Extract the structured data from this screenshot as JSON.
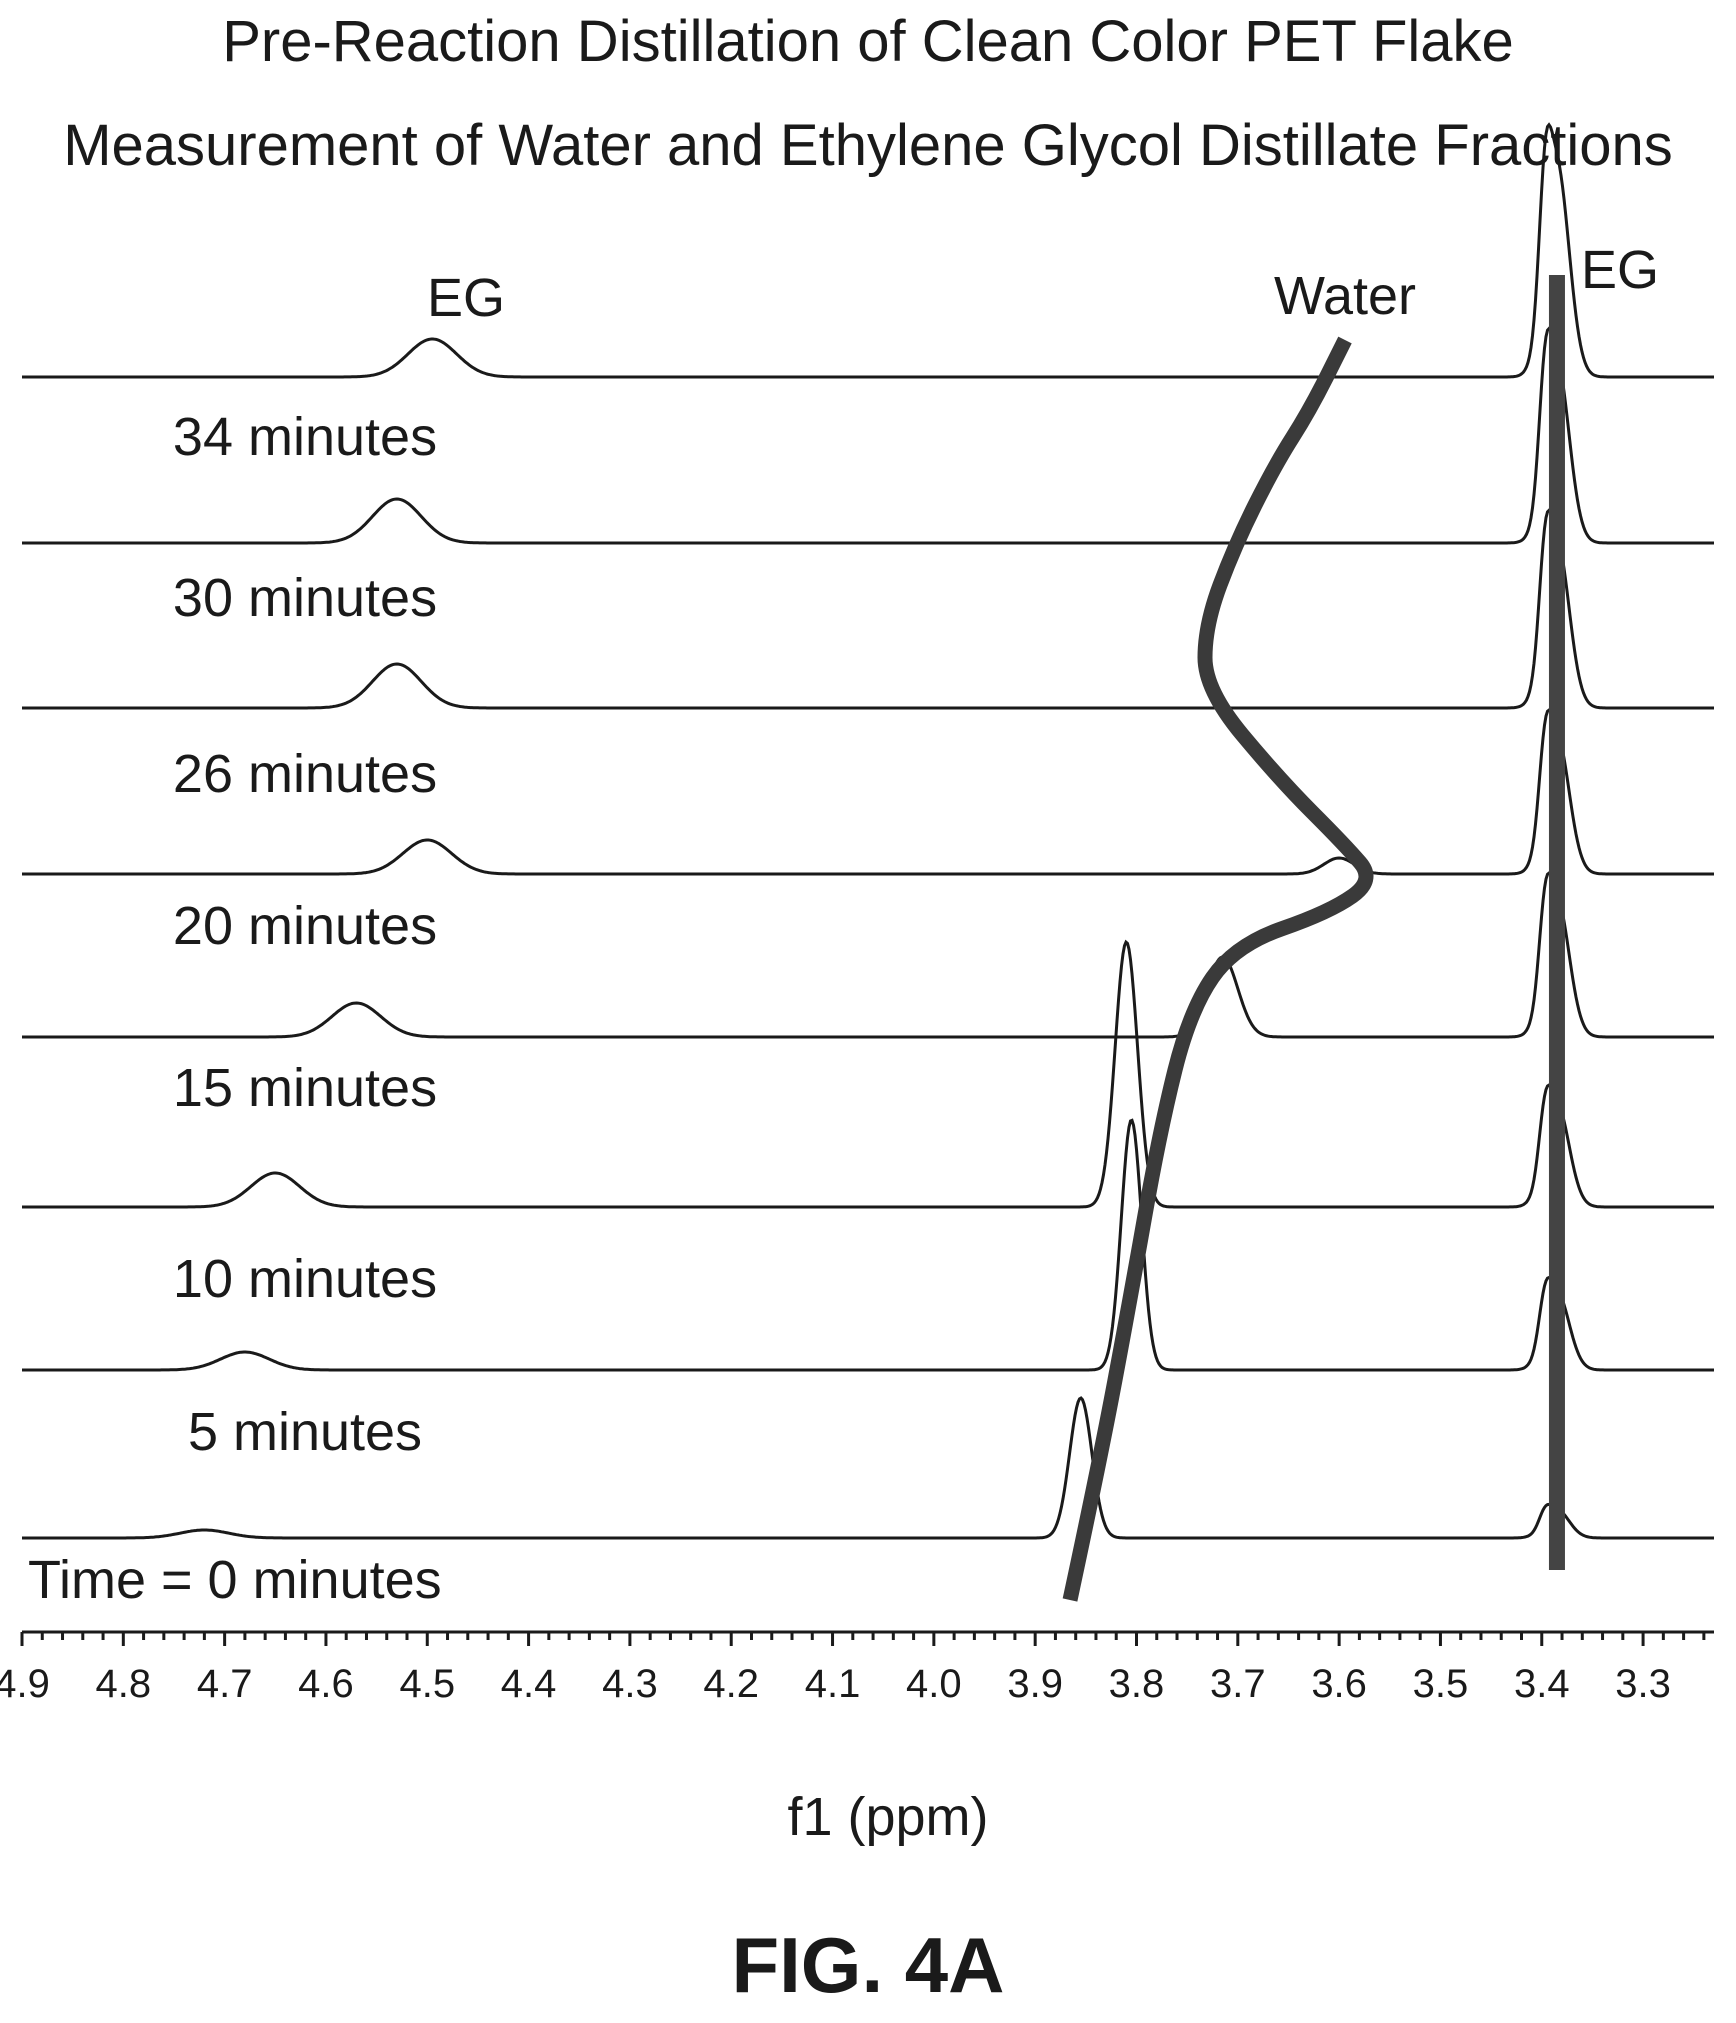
{
  "chart_data": {
    "type": "line",
    "title": "Pre-Reaction Distillation of Clean Color PET Flake",
    "subtitle": "Measurement of Water and Ethylene Glycol Distillate Fractions",
    "xlabel": "f1 (ppm)",
    "xlim": [
      4.9,
      3.23
    ],
    "x_reversed": true,
    "x_ticks": [
      "4.9",
      "4.8",
      "4.7",
      "4.6",
      "4.5",
      "4.4",
      "4.3",
      "4.2",
      "4.1",
      "4.0",
      "3.9",
      "3.8",
      "3.7",
      "3.6",
      "3.5",
      "3.4",
      "3.3"
    ],
    "annotations": {
      "eg_left": "EG",
      "eg_right": "EG",
      "water": "Water"
    },
    "series": [
      {
        "name": "Time = 0 minutes",
        "eg_peak_ppm": 4.72,
        "water_peak_ppm": 3.855,
        "eg2_peak_ppm": 3.385
      },
      {
        "name": "5 minutes",
        "eg_peak_ppm": 4.68,
        "water_peak_ppm": 3.805,
        "eg2_peak_ppm": 3.385
      },
      {
        "name": "10 minutes",
        "eg_peak_ppm": 4.65,
        "water_peak_ppm": 3.81,
        "eg2_peak_ppm": 3.385
      },
      {
        "name": "15 minutes",
        "eg_peak_ppm": 4.57,
        "water_peak_ppm": 3.715,
        "eg2_peak_ppm": 3.385
      },
      {
        "name": "20 minutes",
        "eg_peak_ppm": 4.5,
        "water_peak_ppm": 3.6,
        "eg2_peak_ppm": 3.385
      },
      {
        "name": "26 minutes",
        "eg_peak_ppm": 4.53,
        "water_peak_ppm": null,
        "eg2_peak_ppm": 3.385
      },
      {
        "name": "30 minutes",
        "eg_peak_ppm": 4.53,
        "water_peak_ppm": null,
        "eg2_peak_ppm": 3.385
      },
      {
        "name": "34 minutes",
        "eg_peak_ppm": 4.495,
        "water_peak_ppm": null,
        "eg2_peak_ppm": 3.385
      }
    ],
    "water_trend_ppm": [
      3.87,
      3.84,
      3.8,
      3.76,
      3.73,
      3.68,
      3.58,
      3.6,
      3.68,
      3.75,
      3.74,
      3.73,
      3.68,
      3.6
    ],
    "eg_marker_ppm": 3.385,
    "grid": false,
    "legend": "none"
  },
  "caption": "FIG. 4A"
}
